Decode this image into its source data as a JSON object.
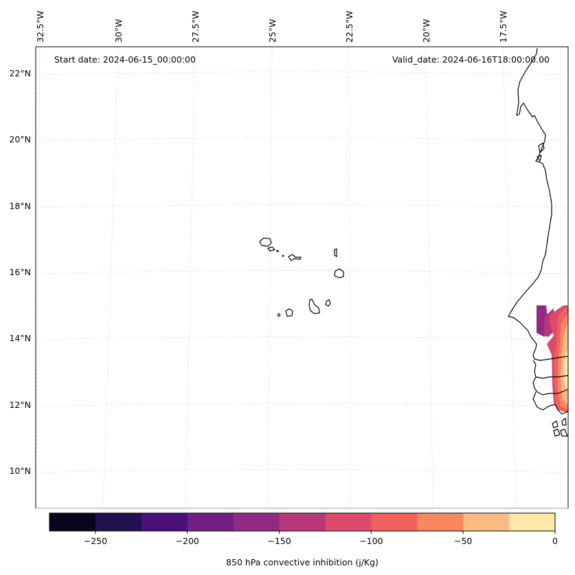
{
  "figure": {
    "start_date_label": "Start date: 2024-06-15_00:00:00",
    "valid_date_label": "Valid_date: 2024-06-16T18:00:00.00"
  },
  "map": {
    "lon_ticks": [
      "32.5°W",
      "30°W",
      "27.5°W",
      "25°W",
      "22.5°W",
      "20°W",
      "17.5°W"
    ],
    "lat_ticks": [
      "22°N",
      "20°N",
      "18°N",
      "16°N",
      "14°N",
      "12°N",
      "10°N"
    ],
    "gridlines": true,
    "features": [
      "coastline of West Africa (Western Sahara, Mauritania, Senegal, Gambia, Guinea-Bissau)",
      "Cape Verde islands"
    ]
  },
  "chart_data": {
    "type": "heatmap",
    "title": "",
    "variable": "850 hPa convective inhibition",
    "units": "j/Kg",
    "colorbar": {
      "label": "850 hPa convective inhibition (j/Kg)",
      "levels": [
        -275,
        -250,
        -225,
        -200,
        -175,
        -150,
        -125,
        -100,
        -75,
        -50,
        -25,
        0
      ],
      "tick_labels": [
        "−250",
        "−200",
        "−150",
        "−100",
        "−50",
        "0"
      ],
      "tick_values": [
        -250,
        -200,
        -150,
        -100,
        -50,
        0
      ],
      "colors": [
        "#07061c",
        "#21114e",
        "#4b1178",
        "#721f81",
        "#912b81",
        "#b73779",
        "#dc4a6c",
        "#f1605d",
        "#fb8761",
        "#fdbb84",
        "#fce8a9"
      ]
    },
    "filled_region": {
      "description": "Contoured CIN values along the Senegal/Gambia/Guinea-Bissau coast, roughly 12–15°N near the eastern map edge",
      "value_range": [
        -175,
        0
      ]
    }
  }
}
